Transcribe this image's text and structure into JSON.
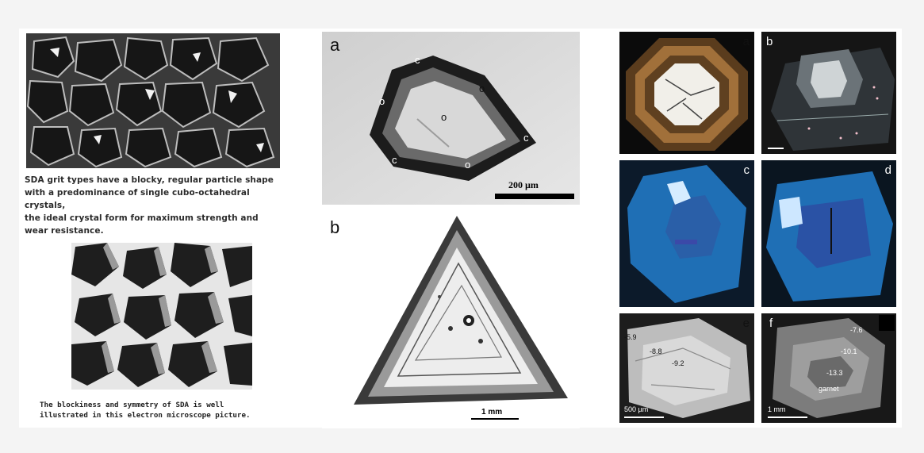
{
  "left": {
    "caption_top": [
      "SDA grit types have a blocky, regular particle shape",
      "with a predominance of   single cubo-octahedral crystals,",
      "the ideal crystal form for  maximum strength and",
      "wear resistance."
    ],
    "caption_bottom": [
      "The blockiness and symmetry of SDA is well",
      "illustrated in this electron microscope picture."
    ]
  },
  "middle": {
    "panel_a": {
      "label": "a",
      "marks": [
        "c",
        "o",
        "o",
        "o",
        "c",
        "c",
        "o"
      ],
      "scalebar": "200 µm"
    },
    "panel_b": {
      "label": "b",
      "scalebar": "1 mm"
    }
  },
  "right": {
    "a": {
      "label": "a"
    },
    "b": {
      "label": "b"
    },
    "c": {
      "label": "c"
    },
    "d": {
      "label": "d"
    },
    "e": {
      "label": "e",
      "values": [
        "-5.9",
        "-8.8",
        "-9.2"
      ],
      "scalebar": "500 µm"
    },
    "f": {
      "label": "f",
      "values": [
        "-7.6",
        "-10.1",
        "-13.3"
      ],
      "annotation": "garnet",
      "scalebar": "1 mm"
    }
  },
  "colors": {
    "cl_blue": "#1f6fb5",
    "amber": "#8a5a2b",
    "page": "#ffffff"
  }
}
